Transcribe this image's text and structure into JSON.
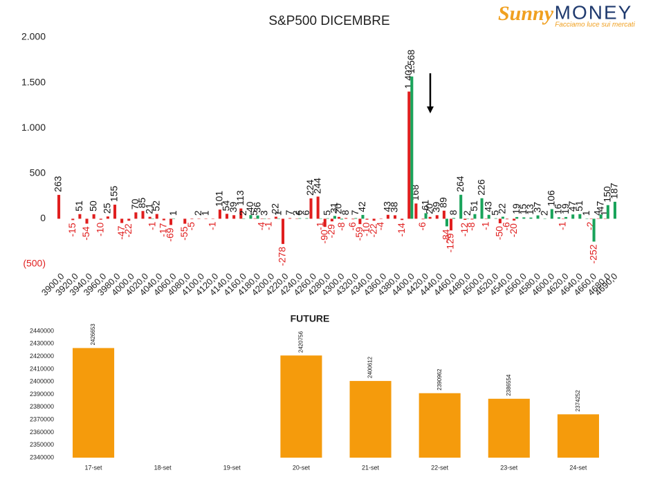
{
  "logo": {
    "brand_left": "Sunny",
    "brand_right": "MONEY",
    "tagline": "Facciamo luce sui mercati"
  },
  "chart_data": [
    {
      "type": "bar",
      "title": "S&P500 DICEMBRE",
      "categories": [
        "3900,0",
        null,
        "3920,0",
        null,
        "3940,0",
        null,
        "3960,0",
        null,
        "3980,0",
        null,
        "4000,0",
        null,
        "4020,0",
        null,
        "4040,0",
        null,
        "4060,0",
        null,
        "4080,0",
        null,
        "4100,0",
        null,
        "4120,0",
        null,
        "4140,0",
        null,
        "4160,0",
        null,
        "4180,0",
        null,
        "4200,0",
        null,
        "4220,0",
        null,
        "4240,0",
        null,
        "4260,0",
        null,
        "4280,0",
        null,
        "4300,0",
        null,
        "4320,0",
        null,
        "4340,0",
        null,
        "4360,0",
        null,
        "4380,0",
        null,
        "4400,0",
        null,
        "4420,0",
        null,
        "4440,0",
        null,
        "4460,0",
        null,
        "4480,0",
        null,
        "4500,0",
        null,
        "4520,0",
        null,
        "4540,0",
        null,
        "4560,0",
        null,
        "4580,0",
        null,
        "4600,0",
        null,
        "4620,0",
        null,
        "4640,0",
        null,
        "4660,0",
        null,
        "4680,0",
        "4690,0"
      ],
      "series": [
        {
          "color": "#e01e1e",
          "values": [
            263,
            null,
            -15,
            51,
            -54,
            50,
            -10,
            25,
            155,
            -47,
            -22,
            70,
            85,
            21,
            52,
            -17,
            -69,
            null,
            -55,
            -5,
            2,
            1,
            -1,
            101,
            54,
            39,
            113,
            null,
            5,
            -4,
            -1,
            22,
            -278,
            7,
            2,
            null,
            224,
            244,
            -90,
            -29,
            20,
            8,
            -6,
            -59,
            -10,
            -22,
            -4,
            43,
            38,
            -14,
            1402,
            168,
            -6,
            20,
            39,
            89,
            -129,
            null,
            -12,
            -8,
            null,
            -1,
            null,
            -50,
            -6,
            -20,
            null,
            null,
            null,
            null,
            null,
            null,
            -1,
            null,
            null,
            null,
            -2,
            4,
            1,
            null
          ],
          "value_labels": [
            null,
            null,
            null,
            null,
            null,
            null,
            null,
            null,
            null,
            null,
            null,
            null,
            null,
            null,
            null,
            null,
            null,
            null,
            null,
            null,
            null,
            null,
            null,
            null,
            null,
            null,
            null,
            null,
            null,
            null,
            null,
            null,
            null,
            null,
            null,
            null,
            null,
            null,
            null,
            null,
            null,
            null,
            null,
            null,
            null,
            null,
            null,
            null,
            null,
            null,
            "1.402",
            null,
            null,
            null,
            null,
            null,
            null,
            null,
            null,
            null,
            null,
            null,
            null,
            null,
            null,
            null,
            null,
            null,
            null,
            null,
            null,
            null,
            null,
            null,
            null,
            null,
            null,
            null,
            null,
            null
          ]
        },
        {
          "color": "#19a35a",
          "values": [
            null,
            null,
            null,
            null,
            null,
            null,
            null,
            null,
            null,
            null,
            null,
            null,
            null,
            -1,
            null,
            null,
            1,
            null,
            null,
            null,
            null,
            null,
            null,
            null,
            null,
            null,
            2,
            40,
            36,
            3,
            null,
            1,
            null,
            null,
            6,
            6,
            null,
            -1,
            5,
            31,
            -8,
            null,
            7,
            42,
            null,
            null,
            null,
            null,
            null,
            null,
            1568,
            null,
            61,
            null,
            null,
            -84,
            8,
            264,
            2,
            51,
            226,
            43,
            5,
            22,
            null,
            19,
            15,
            13,
            37,
            2,
            106,
            16,
            19,
            47,
            51,
            1,
            -252,
            47,
            150,
            187
          ],
          "value_labels": [
            null,
            null,
            null,
            null,
            null,
            null,
            null,
            null,
            null,
            null,
            null,
            null,
            null,
            null,
            null,
            null,
            null,
            null,
            null,
            null,
            null,
            null,
            null,
            null,
            null,
            null,
            null,
            null,
            null,
            null,
            null,
            null,
            null,
            null,
            null,
            null,
            null,
            null,
            null,
            null,
            null,
            null,
            null,
            null,
            null,
            null,
            null,
            null,
            null,
            null,
            "1.568",
            null,
            null,
            null,
            null,
            null,
            null,
            null,
            null,
            null,
            null,
            null,
            null,
            null,
            null,
            null,
            null,
            null,
            null,
            null,
            null,
            null,
            null,
            null,
            null,
            null,
            null,
            null,
            null,
            null
          ]
        }
      ],
      "ylim": [
        -500,
        2000
      ],
      "yticks": [
        {
          "value": 2000,
          "label": "2.000"
        },
        {
          "value": 1500,
          "label": "1.500"
        },
        {
          "value": 1000,
          "label": "1.000"
        },
        500,
        0,
        {
          "value": -500,
          "label": "(500)"
        }
      ],
      "grid": false
    },
    {
      "type": "bar",
      "title": "FUTURE",
      "color": "#f59b0c",
      "categories": [
        "17-set",
        "18-set",
        "19-set",
        "20-set",
        "21-set",
        "22-set",
        "23-set",
        "24-set"
      ],
      "values": [
        2426653,
        null,
        null,
        2420756,
        2400612,
        2390962,
        2386554,
        2374252
      ],
      "ylim": [
        2340000,
        2440000
      ],
      "yticks": [
        2440000,
        2430000,
        2420000,
        2410000,
        2400000,
        2390000,
        2380000,
        2370000,
        2360000,
        2350000,
        2340000
      ],
      "grid": false
    }
  ]
}
